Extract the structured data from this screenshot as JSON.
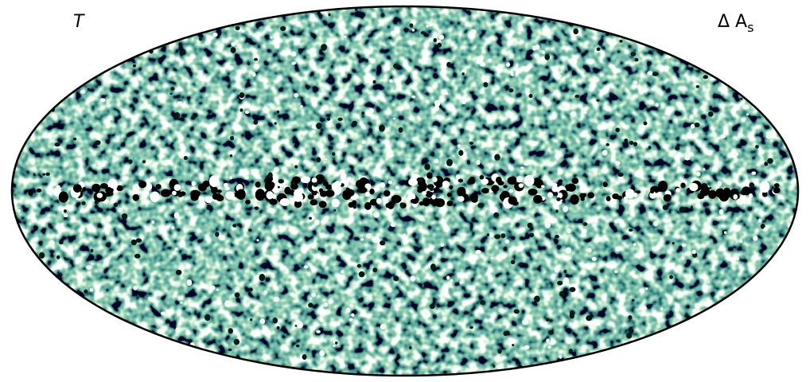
{
  "labels": {
    "left": "T",
    "right": "Δ A",
    "right_subscript": "s"
  }
}
